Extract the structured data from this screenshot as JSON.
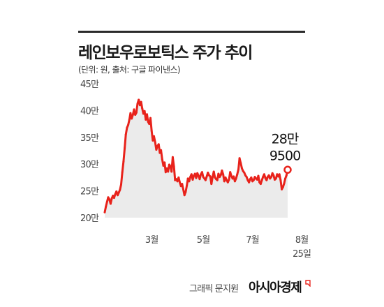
{
  "header": {
    "title": "레인보우로보틱스 주가 추이",
    "subtitle": "(단위: 원, 출처: 구글 파이낸스)"
  },
  "credit": {
    "prefix": "그래픽 문지원",
    "logo": "아시아경제"
  },
  "colors": {
    "line": "#e8221b",
    "area": "#ebebeb",
    "rule": "#2b2b2b",
    "text": "#222222"
  },
  "chart_data": {
    "type": "area",
    "title": "레인보우로보틱스 주가 추이",
    "ylabel": "",
    "xlabel": "",
    "ylim": [
      200000,
      450000
    ],
    "y_ticks": [
      {
        "value": 450000,
        "label": "45만"
      },
      {
        "value": 400000,
        "label": "40만"
      },
      {
        "value": 350000,
        "label": "35만"
      },
      {
        "value": 300000,
        "label": "30만"
      },
      {
        "value": 250000,
        "label": "25만"
      },
      {
        "value": 200000,
        "label": "20만"
      }
    ],
    "x_ticks": [
      {
        "index": 40,
        "label": "3월"
      },
      {
        "index": 84,
        "label": "5월"
      },
      {
        "index": 126,
        "label": "7월"
      },
      {
        "index": 168,
        "label": "8월",
        "sublabel": "25일"
      }
    ],
    "grid": false,
    "annotation": {
      "lines": [
        "28만",
        "9500"
      ],
      "value": 289500
    },
    "series": [
      {
        "values": [
          210000,
          221000,
          230000,
          238000,
          234000,
          226000,
          236000,
          241000,
          237000,
          244000,
          249000,
          242000,
          247000,
          252000,
          262000,
          285000,
          305000,
          330000,
          355000,
          368000,
          373000,
          383000,
          395000,
          385000,
          392000,
          402000,
          392000,
          396000,
          413000,
          420000,
          410000,
          416000,
          404000,
          394000,
          399000,
          383000,
          393000,
          379000,
          375000,
          386000,
          362000,
          344000,
          352000,
          341000,
          327000,
          334000,
          337000,
          321000,
          326000,
          309000,
          297000,
          303000,
          285000,
          292000,
          286000,
          299000,
          296000,
          286000,
          313000,
          296000,
          270000,
          272000,
          268000,
          275000,
          266000,
          259000,
          263000,
          253000,
          242000,
          248000,
          260000,
          273000,
          268000,
          276000,
          281000,
          271000,
          278000,
          282000,
          274000,
          283000,
          278000,
          272000,
          281000,
          285000,
          276000,
          273000,
          270000,
          277000,
          284000,
          279000,
          277000,
          263000,
          276000,
          286000,
          275000,
          272000,
          270000,
          282000,
          276000,
          280000,
          288000,
          281000,
          268000,
          275000,
          270000,
          266000,
          271000,
          285000,
          278000,
          273000,
          277000,
          268000,
          273000,
          281000,
          290000,
          311000,
          302000,
          292000,
          287000,
          284000,
          279000,
          276000,
          270000,
          266000,
          272000,
          275000,
          268000,
          270000,
          276000,
          273000,
          271000,
          278000,
          266000,
          263000,
          270000,
          276000,
          281000,
          274000,
          270000,
          276000,
          279000,
          273000,
          276000,
          283000,
          279000,
          271000,
          273000,
          281000,
          277000,
          281000,
          270000,
          253000,
          257000,
          264000,
          273000,
          279000,
          289500
        ]
      }
    ]
  }
}
